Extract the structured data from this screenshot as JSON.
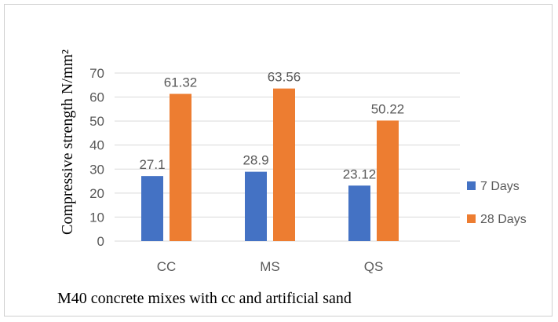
{
  "chart_data": {
    "type": "bar",
    "categories": [
      "CC",
      "MS",
      "QS"
    ],
    "series": [
      {
        "name": "7 Days",
        "values": [
          27.1,
          28.9,
          23.12
        ],
        "labels": [
          "27.1",
          "28.9",
          "23.12"
        ],
        "color": "#4472c4"
      },
      {
        "name": "28 Days",
        "values": [
          61.32,
          63.56,
          50.22
        ],
        "labels": [
          "61.32",
          "63.56",
          "50.22"
        ],
        "color": "#ed7d31"
      }
    ],
    "yticks": [
      "0",
      "10",
      "20",
      "30",
      "40",
      "50",
      "60",
      "70"
    ],
    "ylim": [
      0,
      70
    ],
    "ylabel": "Compressive strength N/mm²",
    "xlabel": "M40 concrete mixes with cc and artificial sand",
    "legend_position": "right",
    "grid": true,
    "gridline_color": "#d9d9d9",
    "text_color": "#595959"
  }
}
